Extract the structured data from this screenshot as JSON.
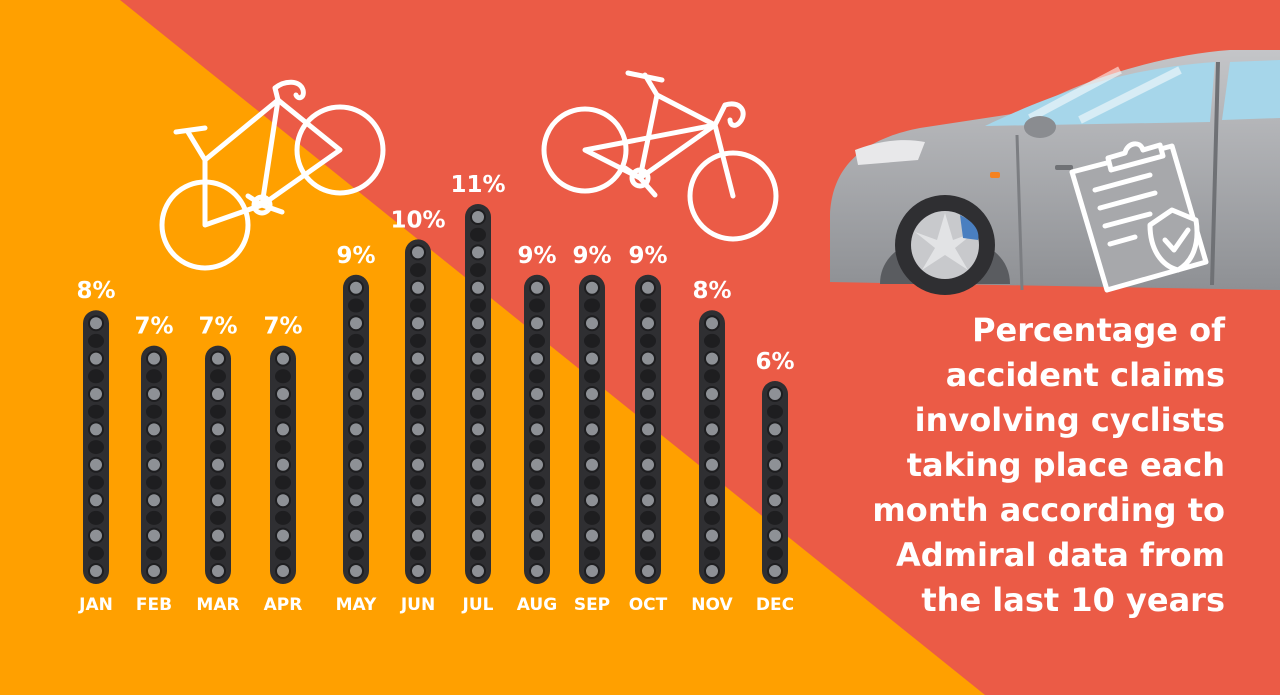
{
  "colors": {
    "background_left": "#FFA000",
    "background_right": "#EB5B46",
    "chain_dark": "#2F2F32",
    "chain_light": "#8E9196",
    "text": "#FFFFFF",
    "car_body": "#A7A8AB"
  },
  "icons": [
    "bicycle-icon",
    "bicycle-icon",
    "car-illustration",
    "clipboard-shield-icon"
  ],
  "title_lines": [
    "Percentage of",
    "accident claims",
    "involving cyclists",
    "taking place each",
    "month according to",
    "Admiral data from",
    "the last 10 years"
  ],
  "chart_data": {
    "type": "bar",
    "title": "Percentage of accident claims involving cyclists taking place each month according to Admiral data from the last 10 years",
    "categories": [
      "JAN",
      "FEB",
      "MAR",
      "APR",
      "MAY",
      "JUN",
      "JUL",
      "AUG",
      "SEP",
      "OCT",
      "NOV",
      "DEC"
    ],
    "values": [
      8,
      7,
      7,
      7,
      9,
      10,
      11,
      9,
      9,
      9,
      8,
      6
    ],
    "value_labels": [
      "8%",
      "7%",
      "7%",
      "7%",
      "9%",
      "10%",
      "11%",
      "9%",
      "9%",
      "9%",
      "8%",
      "6%"
    ],
    "unit": "%",
    "ylim": [
      0,
      11
    ],
    "grid": false,
    "legend": "none"
  }
}
